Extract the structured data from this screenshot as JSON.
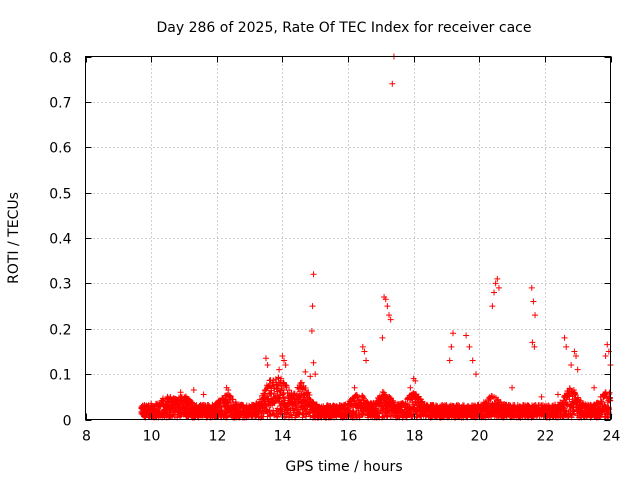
{
  "chart_data": {
    "type": "scatter",
    "title": "Day 286 of 2025, Rate Of TEC Index for receiver cace",
    "xlabel": "GPS time / hours",
    "ylabel": "ROTI / TECUs",
    "xlim": [
      8,
      24
    ],
    "ylim": [
      0,
      0.8
    ],
    "xticks": [
      8,
      10,
      12,
      14,
      16,
      18,
      20,
      22,
      24
    ],
    "yticks": [
      0,
      0.1,
      0.2,
      0.3,
      0.4,
      0.5,
      0.6,
      0.7,
      0.8
    ],
    "grid": true,
    "marker": "+",
    "color": "#ff0000",
    "series": [
      {
        "name": "ROTI",
        "note": "dense background band of values 0.00-0.05 from ~9.7 to 24 h, plus the outlier/peak points below",
        "points": [
          [
            9.75,
            0.03
          ],
          [
            10.0,
            0.035
          ],
          [
            10.5,
            0.05
          ],
          [
            10.9,
            0.06
          ],
          [
            11.3,
            0.065
          ],
          [
            11.6,
            0.055
          ],
          [
            12.3,
            0.07
          ],
          [
            12.35,
            0.065
          ],
          [
            13.5,
            0.135
          ],
          [
            13.55,
            0.12
          ],
          [
            13.9,
            0.11
          ],
          [
            14.0,
            0.14
          ],
          [
            14.05,
            0.13
          ],
          [
            14.1,
            0.12
          ],
          [
            14.7,
            0.105
          ],
          [
            14.85,
            0.095
          ],
          [
            14.95,
            0.32
          ],
          [
            14.92,
            0.25
          ],
          [
            14.9,
            0.195
          ],
          [
            14.95,
            0.125
          ],
          [
            15.0,
            0.1
          ],
          [
            16.2,
            0.07
          ],
          [
            16.45,
            0.16
          ],
          [
            16.5,
            0.15
          ],
          [
            16.55,
            0.13
          ],
          [
            17.1,
            0.27
          ],
          [
            17.15,
            0.265
          ],
          [
            17.2,
            0.25
          ],
          [
            17.25,
            0.23
          ],
          [
            17.3,
            0.22
          ],
          [
            17.05,
            0.18
          ],
          [
            17.4,
            0.8
          ],
          [
            17.35,
            0.74
          ],
          [
            17.9,
            0.07
          ],
          [
            18.0,
            0.09
          ],
          [
            18.05,
            0.085
          ],
          [
            19.2,
            0.19
          ],
          [
            19.15,
            0.16
          ],
          [
            19.1,
            0.13
          ],
          [
            19.6,
            0.185
          ],
          [
            19.7,
            0.16
          ],
          [
            19.8,
            0.13
          ],
          [
            19.9,
            0.1
          ],
          [
            20.4,
            0.25
          ],
          [
            20.5,
            0.3
          ],
          [
            20.55,
            0.31
          ],
          [
            20.45,
            0.28
          ],
          [
            20.6,
            0.29
          ],
          [
            21.0,
            0.07
          ],
          [
            21.6,
            0.29
          ],
          [
            21.65,
            0.26
          ],
          [
            21.7,
            0.23
          ],
          [
            21.62,
            0.17
          ],
          [
            21.68,
            0.16
          ],
          [
            21.9,
            0.05
          ],
          [
            22.4,
            0.055
          ],
          [
            22.6,
            0.18
          ],
          [
            22.65,
            0.16
          ],
          [
            22.8,
            0.12
          ],
          [
            22.9,
            0.15
          ],
          [
            22.95,
            0.14
          ],
          [
            23.0,
            0.11
          ],
          [
            23.5,
            0.07
          ],
          [
            23.7,
            0.05
          ],
          [
            23.9,
            0.165
          ],
          [
            23.95,
            0.15
          ],
          [
            24.0,
            0.12
          ],
          [
            23.85,
            0.14
          ]
        ]
      }
    ]
  }
}
